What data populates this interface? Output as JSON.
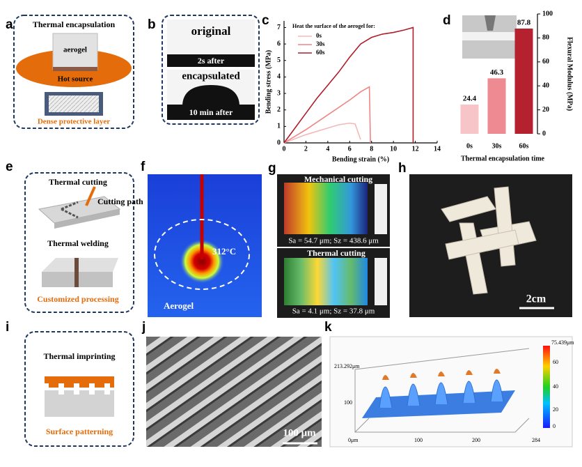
{
  "panels": {
    "a": {
      "label": "a",
      "title": "Thermal  encapsulation",
      "block": "aerogel",
      "source": "Hot source",
      "layer": "Dense protective layer"
    },
    "b": {
      "label": "b",
      "top": "original",
      "top_time": "2s  after",
      "bottom": "encapsulated",
      "bottom_time": "10 min  after"
    },
    "c": {
      "label": "c"
    },
    "d": {
      "label": "d"
    },
    "e": {
      "label": "e",
      "cutting": "Thermal cutting",
      "path": "Cutting path",
      "welding": "Thermal welding",
      "caption": "Customized processing"
    },
    "f": {
      "label": "f",
      "temperature": "312°C",
      "material": "Aerogel"
    },
    "g": {
      "label": "g",
      "top_title": "Mechanical cutting",
      "top_stats": "Sa = 54.7 μm; Sz = 438.6 μm",
      "bottom_title": "Thermal  cutting",
      "bottom_stats": "Sa = 4.1 μm; Sz = 37.8 μm"
    },
    "h": {
      "label": "h",
      "scale": "2cm"
    },
    "i": {
      "label": "i",
      "title": "Thermal imprinting",
      "caption": "Surface patterning"
    },
    "j": {
      "label": "j",
      "scale": "100 μm"
    },
    "k": {
      "label": "k",
      "max": "75.439μm",
      "y_end": "213.292μm",
      "y_mid": "100",
      "origin": "0μm",
      "x_ticks": [
        "100",
        "200",
        "284"
      ],
      "bar_ticks": [
        "60",
        "40",
        "20",
        "0"
      ]
    }
  },
  "chart_data": [
    {
      "type": "line",
      "legend_title": "Heat the surface of the aerogel for:",
      "x_label": "Bending strain (%)",
      "y_label": "Bending stress (MPa)",
      "xlim": [
        0,
        14
      ],
      "ylim": [
        0,
        7.4
      ],
      "xticks": [
        0,
        2,
        4,
        6,
        8,
        10,
        12,
        14
      ],
      "yticks": [
        0,
        1,
        2,
        3,
        4,
        5,
        6,
        7
      ],
      "series": [
        {
          "name": "0s",
          "color": "#f5b8b8",
          "x": [
            0,
            2,
            4,
            5,
            6,
            6.5,
            7
          ],
          "values": [
            0,
            0.5,
            0.9,
            1.1,
            1.2,
            1.15,
            0.2
          ]
        },
        {
          "name": "30s",
          "color": "#ee8585",
          "x": [
            0,
            2,
            4,
            6,
            7,
            7.8,
            7.9
          ],
          "values": [
            0,
            0.8,
            1.7,
            2.6,
            3.1,
            3.4,
            0
          ]
        },
        {
          "name": "60s",
          "color": "#b01c2a",
          "x": [
            0,
            1,
            2,
            3,
            4,
            5,
            6,
            7,
            8,
            9,
            10,
            11,
            11.8,
            11.8
          ],
          "values": [
            0,
            0.9,
            1.8,
            2.7,
            3.5,
            4.3,
            5.2,
            6.0,
            6.4,
            6.6,
            6.7,
            6.85,
            7.0,
            0
          ]
        }
      ]
    },
    {
      "type": "bar",
      "x_label": "Thermal  encapsulation time",
      "y_label": "Flexural  Modulus (MPa)",
      "categories": [
        "0s",
        "30s",
        "60s"
      ],
      "values": [
        24.4,
        46.3,
        87.8
      ],
      "colors": [
        "#f7c5c8",
        "#ee8a92",
        "#b5212e"
      ],
      "ylim": [
        0,
        100
      ],
      "yticks": [
        0,
        20,
        40,
        60,
        80,
        100
      ]
    }
  ]
}
